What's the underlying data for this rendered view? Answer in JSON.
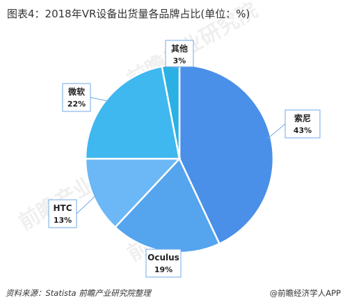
{
  "title": "图表4：2018年VR设备出货量各品牌占比(单位：%)",
  "footer": {
    "source": "资料来源：Statista 前瞻产业研究院整理",
    "brand": "@前瞻经济学人APP"
  },
  "watermark": "前瞻产业研究院",
  "colors": {
    "sony": "#4a8fe8",
    "oculus": "#54a4ee",
    "htc": "#6cb7f5",
    "microsoft": "#3fb7ef",
    "others": "#2ab0e2",
    "leader": "#6fa9e8"
  },
  "chart_data": {
    "type": "pie",
    "title": "图表4：2018年VR设备出货量各品牌占比(单位：%)",
    "labels": [
      "索尼",
      "Oculus",
      "HTC",
      "微软",
      "其他"
    ],
    "values": [
      43,
      19,
      13,
      22,
      3
    ],
    "value_labels": [
      "43%",
      "19%",
      "13%",
      "22%",
      "3%"
    ],
    "start": "12 o'clock, clockwise"
  }
}
